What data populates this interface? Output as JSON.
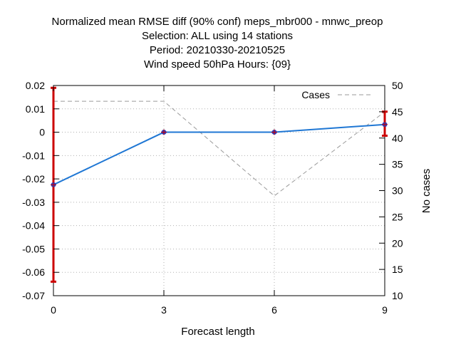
{
  "chart_data": {
    "type": "line",
    "title_lines": [
      "Normalized mean RMSE diff (90% conf) meps_mbr000 - mnwc_preop",
      "Selection: ALL using    14 stations",
      "Period: 20210330-20210525",
      "Wind speed 50hPa   Hours: {09}"
    ],
    "xlabel": "Forecast length",
    "ylabel": "",
    "y2label": "No cases",
    "x": [
      0,
      3,
      6,
      9
    ],
    "xticks": [
      "0",
      "3",
      "6",
      "9"
    ],
    "xlim": [
      0,
      9
    ],
    "ylim": [
      -0.07,
      0.02
    ],
    "yticks": [
      "0.02",
      "0.01",
      "0",
      "-0.01",
      "-0.02",
      "-0.03",
      "-0.04",
      "-0.05",
      "-0.06",
      "-0.07"
    ],
    "y2lim": [
      10,
      50
    ],
    "y2ticks": [
      "50",
      "45",
      "40",
      "35",
      "30",
      "25",
      "20",
      "15",
      "10"
    ],
    "grid": true,
    "legend_position": "top-right",
    "series": [
      {
        "values": [
          -0.0225,
          0.0,
          0.0,
          0.0033
        ],
        "error_low": [
          -0.064,
          0.0,
          0.0,
          -0.0015
        ],
        "error_high": [
          0.019,
          0.0,
          0.0,
          0.0088
        ],
        "color": "#1f77d4",
        "marker_color": "#2b3fbf",
        "errorbar_color": "#cc0000"
      },
      {
        "name": "Cases",
        "axis": "right",
        "values": [
          47,
          47,
          29,
          45
        ],
        "color": "#9a9a9a",
        "style": "dashed"
      }
    ]
  }
}
